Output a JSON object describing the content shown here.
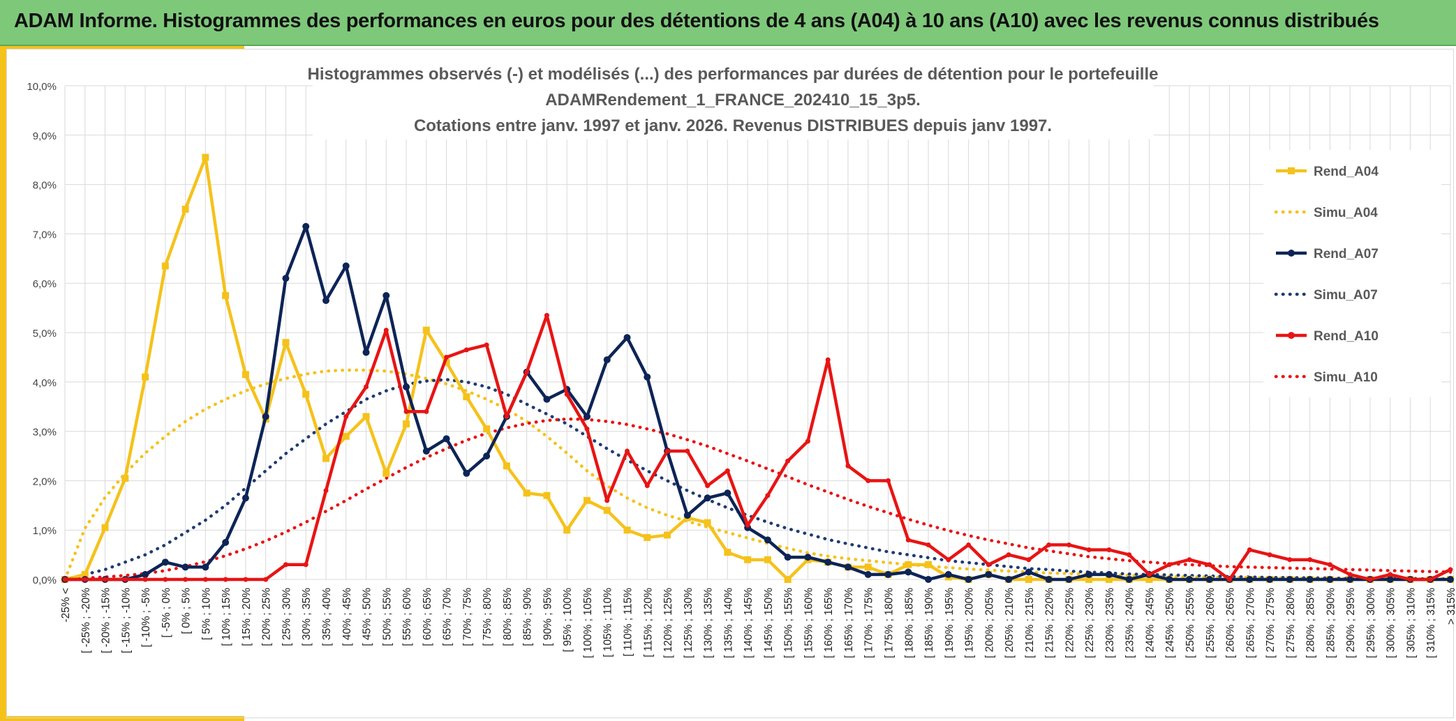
{
  "header": {
    "title": "ADAM Informe. Histogrammes des performances en euros pour des détentions de 4 ans (A04) à 10 ans (A10) avec les revenus connus distribués"
  },
  "chart_data": {
    "type": "line",
    "title": [
      "Histogrammes observés (-) et modélisés (...) des performances par durées de détention pour le portefeuille",
      "ADAMRendement_1_FRANCE_202410_15_3p5.",
      "Cotations entre janv. 1997 et janv. 2026. Revenus DISTRIBUES depuis janv 1997."
    ],
    "y_ticks": [
      "0,0%",
      "1,0%",
      "2,0%",
      "3,0%",
      "4,0%",
      "5,0%",
      "6,0%",
      "7,0%",
      "8,0%",
      "9,0%",
      "10,0%"
    ],
    "ylim": [
      0,
      10
    ],
    "categories": [
      "-25% <",
      "[ -25% ; -20%",
      "[ -20% ; -15%",
      "[ -15% ; -10%",
      "[ -10% ; -5%",
      "[ -5% ; 0%",
      "[ 0% ; 5%",
      "[ 5% ; 10%",
      "[ 10% ; 15%",
      "[ 15% ; 20%",
      "[ 20% ; 25%",
      "[ 25% ; 30%",
      "[ 30% ; 35%",
      "[ 35% ; 40%",
      "[ 40% ; 45%",
      "[ 45% ; 50%",
      "[ 50% ; 55%",
      "[ 55% ; 60%",
      "[ 60% ; 65%",
      "[ 65% ; 70%",
      "[ 70% ; 75%",
      "[ 75% ; 80%",
      "[ 80% ; 85%",
      "[ 85% ; 90%",
      "[ 90% ; 95%",
      "[ 95% ; 100%",
      "[ 100% ; 105%",
      "[ 105% ; 110%",
      "[ 110% ; 115%",
      "[ 115% ; 120%",
      "[ 120% ; 125%",
      "[ 125% ; 130%",
      "[ 130% ; 135%",
      "[ 135% ; 140%",
      "[ 140% ; 145%",
      "[ 145% ; 150%",
      "[ 150% ; 155%",
      "[ 155% ; 160%",
      "[ 160% ; 165%",
      "[ 165% ; 170%",
      "[ 170% ; 175%",
      "[ 175% ; 180%",
      "[ 180% ; 185%",
      "[ 185% ; 190%",
      "[ 190% ; 195%",
      "[ 195% ; 200%",
      "[ 200% ; 205%",
      "[ 205% ; 210%",
      "[ 210% ; 215%",
      "[ 215% ; 220%",
      "[ 220% ; 225%",
      "[ 225% ; 230%",
      "[ 230% ; 235%",
      "[ 235% ; 240%",
      "[ 240% ; 245%",
      "[ 245% ; 250%",
      "[ 250% ; 255%",
      "[ 255% ; 260%",
      "[ 260% ; 265%",
      "[ 265% ; 270%",
      "[ 270% ; 275%",
      "[ 275% ; 280%",
      "[ 280% ; 285%",
      "[ 285% ; 290%",
      "[ 290% ; 295%",
      "[ 295% ; 300%",
      "[ 300% ; 305%",
      "[ 305% ; 310%",
      "[ 310% ; 315%",
      "> 315%"
    ],
    "series": [
      {
        "name": "Rend_A04",
        "style": "solid",
        "color": "#f5c21b",
        "values": [
          0,
          0.1,
          1.05,
          2.05,
          4.1,
          6.35,
          7.5,
          8.55,
          5.75,
          4.15,
          3.25,
          4.8,
          3.75,
          2.45,
          2.9,
          3.3,
          2.15,
          3.15,
          5.05,
          4.4,
          3.7,
          3.05,
          2.3,
          1.75,
          1.7,
          1.0,
          1.6,
          1.4,
          1.0,
          0.85,
          0.9,
          1.25,
          1.15,
          0.55,
          0.4,
          0.4,
          0,
          0.4,
          0.35,
          0.25,
          0.25,
          0.1,
          0.3,
          0.3,
          0.05,
          0,
          0.1,
          0,
          0,
          0,
          0,
          0,
          0,
          0,
          0,
          0,
          0,
          0,
          0,
          0,
          0,
          0,
          0,
          0,
          0,
          0,
          0,
          0,
          0,
          0
        ]
      },
      {
        "name": "Simu_A04",
        "style": "dotted",
        "color": "#f5c21b",
        "values": [
          0,
          1.04,
          1.66,
          2.15,
          2.56,
          2.9,
          3.2,
          3.45,
          3.65,
          3.82,
          3.96,
          4.07,
          4.16,
          4.22,
          4.24,
          4.24,
          4.22,
          4.16,
          4.07,
          3.96,
          3.82,
          3.65,
          3.45,
          3.2,
          2.9,
          2.56,
          2.2,
          1.9,
          1.65,
          1.45,
          1.3,
          1.18,
          1.06,
          0.95,
          0.84,
          0.73,
          0.63,
          0.54,
          0.47,
          0.42,
          0.38,
          0.34,
          0.3,
          0.27,
          0.24,
          0.21,
          0.19,
          0.17,
          0.15,
          0.13,
          0.12,
          0.1,
          0.09,
          0.08,
          0.07,
          0.06,
          0.05,
          0.05,
          0.04,
          0.04,
          0.03,
          0.03,
          0.02,
          0.02,
          0.02,
          0.02,
          0.01,
          0.01,
          0.01,
          0.01
        ]
      },
      {
        "name": "Rend_A07",
        "style": "solid",
        "color": "#0d2456",
        "values": [
          0,
          0,
          0,
          0,
          0.1,
          0.35,
          0.25,
          0.25,
          0.75,
          1.65,
          3.3,
          6.1,
          7.15,
          5.65,
          6.35,
          4.6,
          5.75,
          3.9,
          2.6,
          2.85,
          2.15,
          2.5,
          3.3,
          4.2,
          3.65,
          3.85,
          3.3,
          4.45,
          4.9,
          4.1,
          2.6,
          1.3,
          1.65,
          1.75,
          1.05,
          0.8,
          0.45,
          0.45,
          0.35,
          0.25,
          0.1,
          0.1,
          0.15,
          0,
          0.1,
          0,
          0.1,
          0,
          0.15,
          0,
          0,
          0.1,
          0.1,
          0,
          0.1,
          0,
          0,
          0,
          0,
          0,
          0,
          0,
          0,
          0,
          0,
          0,
          0,
          0,
          0,
          0
        ]
      },
      {
        "name": "Simu_A07",
        "style": "dotted",
        "color": "#1f3b73",
        "values": [
          0,
          0.1,
          0.2,
          0.35,
          0.5,
          0.7,
          0.95,
          1.2,
          1.5,
          1.85,
          2.2,
          2.55,
          2.85,
          3.15,
          3.4,
          3.65,
          3.82,
          3.95,
          4.02,
          4.05,
          4.0,
          3.9,
          3.75,
          3.55,
          3.35,
          3.15,
          2.9,
          2.65,
          2.42,
          2.2,
          2.0,
          1.8,
          1.62,
          1.45,
          1.3,
          1.16,
          1.03,
          0.92,
          0.81,
          0.72,
          0.64,
          0.56,
          0.5,
          0.44,
          0.38,
          0.34,
          0.3,
          0.26,
          0.22,
          0.2,
          0.17,
          0.15,
          0.13,
          0.11,
          0.1,
          0.09,
          0.08,
          0.07,
          0.06,
          0.05,
          0.04,
          0.04,
          0.03,
          0.03,
          0.02,
          0.02,
          0.02,
          0.02,
          0.01,
          0.01
        ]
      },
      {
        "name": "Rend_A10",
        "style": "solid",
        "color": "#e81414",
        "values": [
          0,
          0,
          0,
          0,
          0,
          0,
          0,
          0,
          0,
          0,
          0,
          0.3,
          0.3,
          1.8,
          3.3,
          3.9,
          5.05,
          3.4,
          3.4,
          4.5,
          4.65,
          4.75,
          3.3,
          4.2,
          5.35,
          3.75,
          3.05,
          1.6,
          2.6,
          1.9,
          2.6,
          2.6,
          1.9,
          2.2,
          1.1,
          1.7,
          2.4,
          2.8,
          4.45,
          2.3,
          2.0,
          2.0,
          0.8,
          0.7,
          0.4,
          0.7,
          0.3,
          0.5,
          0.4,
          0.7,
          0.7,
          0.6,
          0.6,
          0.5,
          0.1,
          0.3,
          0.4,
          0.3,
          0,
          0.6,
          0.5,
          0.4,
          0.4,
          0.3,
          0.1,
          0,
          0.1,
          0,
          0,
          0.2
        ]
      },
      {
        "name": "Simu_A10",
        "style": "dotted",
        "color": "#e81414",
        "values": [
          0,
          0.03,
          0.05,
          0.08,
          0.12,
          0.18,
          0.26,
          0.36,
          0.48,
          0.62,
          0.78,
          0.96,
          1.16,
          1.38,
          1.6,
          1.83,
          2.05,
          2.27,
          2.47,
          2.65,
          2.82,
          2.96,
          3.07,
          3.16,
          3.22,
          3.25,
          3.24,
          3.2,
          3.14,
          3.05,
          2.95,
          2.83,
          2.7,
          2.55,
          2.4,
          2.24,
          2.08,
          1.92,
          1.77,
          1.62,
          1.48,
          1.35,
          1.22,
          1.1,
          0.99,
          0.89,
          0.8,
          0.72,
          0.64,
          0.58,
          0.52,
          0.46,
          0.42,
          0.38,
          0.35,
          0.32,
          0.3,
          0.28,
          0.26,
          0.25,
          0.24,
          0.23,
          0.22,
          0.21,
          0.2,
          0.19,
          0.18,
          0.17,
          0.16,
          0.15
        ]
      }
    ]
  }
}
